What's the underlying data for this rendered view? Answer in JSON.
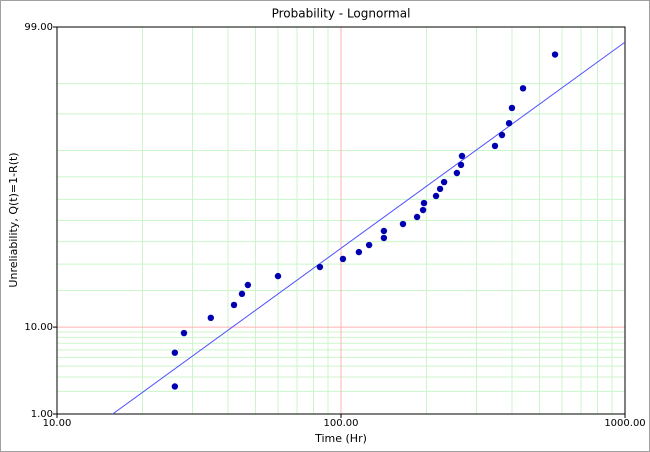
{
  "chart_data": {
    "type": "scatter",
    "title": "Probability - Lognormal",
    "x_label": "Time (Hr)",
    "y_label": "Unreliability, Q(t)=1-R(t)",
    "x_scale": "log",
    "y_scale": "normal-probability",
    "xlim": [
      10,
      1000
    ],
    "ylim": [
      1,
      99
    ],
    "xticks": [
      {
        "value": 10,
        "label": "10.00"
      },
      {
        "value": 100,
        "label": "100.00"
      },
      {
        "value": 1000,
        "label": "1000.00"
      }
    ],
    "yticks": [
      {
        "value": 1,
        "label": "1.00"
      },
      {
        "value": 10,
        "label": "10.00"
      },
      {
        "value": 99,
        "label": "99.00"
      }
    ],
    "x_minor_grid": [
      20,
      30,
      40,
      50,
      60,
      70,
      80,
      90,
      200,
      300,
      400,
      500,
      600,
      700,
      800,
      900
    ],
    "y_minor_grid": [
      2,
      3,
      4,
      5,
      6,
      7,
      8,
      9,
      20,
      30,
      40,
      50,
      60,
      70,
      80,
      90,
      95
    ],
    "x_highlight": 100,
    "y_highlight": 10,
    "grid": true,
    "grid_color": "#ccf5cc",
    "highlight_color": "#ffb0b0",
    "series": [
      {
        "color": "#0000b0",
        "x": [
          26.0,
          26.0,
          28.0,
          34.8,
          42.0,
          44.8,
          47.0,
          60.0,
          84.3,
          101.6,
          115.6,
          125.6,
          141.6,
          141.6,
          165.3,
          185.3,
          194.5,
          196,
          216.1,
          223.3,
          230.7,
          255.9,
          264.6,
          266.7,
          348.5,
          368.9,
          390.6,
          399.9,
          437.5,
          567.1
        ],
        "values": [
          2.3,
          5.6,
          8.8,
          12.1,
          15.5,
          18.9,
          21.9,
          25.2,
          28.8,
          32.2,
          35.2,
          38.4,
          41.7,
          45.0,
          48.3,
          51.7,
          55.0,
          58.3,
          61.6,
          64.8,
          67.8,
          71.6,
          74.8,
          78.1,
          81.5,
          84.8,
          87.9,
          91.2,
          94.4,
          97.7
        ]
      }
    ],
    "fit_line": {
      "color": "#5050ff",
      "x": [
        15.7,
        1000
      ],
      "values": [
        1,
        98.4
      ]
    }
  }
}
